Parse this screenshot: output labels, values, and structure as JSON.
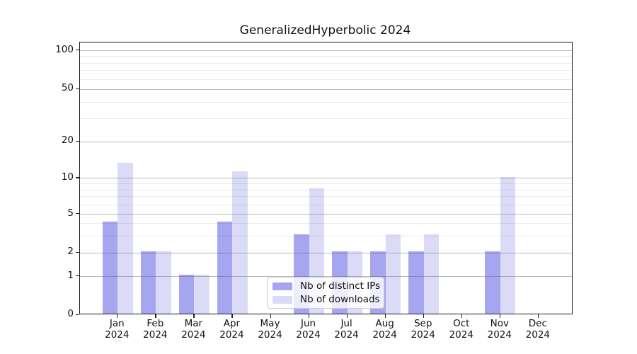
{
  "chart_data": {
    "type": "bar",
    "title": "GeneralizedHyperbolic 2024",
    "categories": [
      "Jan 2024",
      "Feb 2024",
      "Mar 2024",
      "Apr 2024",
      "May 2024",
      "Jun 2024",
      "Jul 2024",
      "Aug 2024",
      "Sep 2024",
      "Oct 2024",
      "Nov 2024",
      "Dec 2024"
    ],
    "series": [
      {
        "name": "Nb of distinct IPs",
        "color": "#a5a5f0",
        "values": [
          4,
          2,
          1,
          4,
          0,
          3,
          2,
          2,
          2,
          0,
          2,
          0
        ]
      },
      {
        "name": "Nb of downloads",
        "color": "#dbdbf8",
        "values": [
          13,
          2,
          1,
          11,
          0,
          8,
          2,
          3,
          3,
          0,
          10,
          0
        ]
      }
    ],
    "xlabel": "",
    "ylabel": "",
    "yscale": "symlog",
    "ylim": [
      0,
      100
    ],
    "y_major_ticks": [
      0,
      1,
      2,
      5,
      10,
      20,
      50,
      100
    ],
    "y_minor_gridlines": [
      3,
      4,
      6,
      7,
      8,
      9,
      30,
      40,
      60,
      70,
      80,
      90
    ],
    "grid": true,
    "legend_position": "lower center",
    "colors": {
      "distinct_ips": "#a5a5f0",
      "downloads": "#dbdbf8",
      "grid_major": "#bababa",
      "grid_minor": "#ebebeb",
      "axis": "#1a1a1a"
    }
  }
}
